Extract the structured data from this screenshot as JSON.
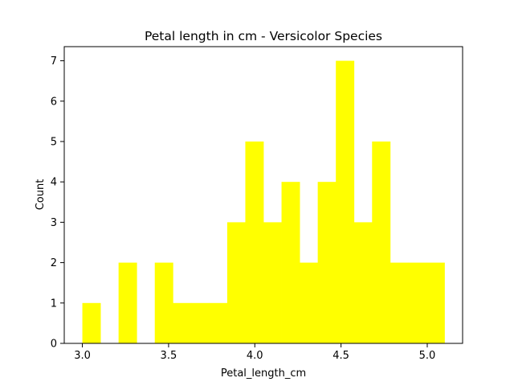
{
  "chart_data": {
    "type": "bar",
    "title": "Petal length in cm - Versicolor Species",
    "xlabel": "Petal_length_cm",
    "ylabel": "Count",
    "bin_edges": [
      3.0,
      3.105,
      3.21,
      3.315,
      3.42,
      3.525,
      3.63,
      3.735,
      3.84,
      3.945,
      4.05,
      4.155,
      4.26,
      4.365,
      4.47,
      4.575,
      4.68,
      4.785,
      4.89,
      4.995,
      5.1
    ],
    "values": [
      1,
      0,
      2,
      0,
      2,
      1,
      1,
      1,
      3,
      5,
      3,
      4,
      2,
      4,
      7,
      3,
      5,
      2,
      2,
      2
    ],
    "xlim": [
      2.895,
      5.205
    ],
    "ylim": [
      0,
      7.35
    ],
    "xticks": [
      3.0,
      3.5,
      4.0,
      4.5,
      5.0
    ],
    "xtick_labels": [
      "3.0",
      "3.5",
      "4.0",
      "4.5",
      "5.0"
    ],
    "yticks": [
      0,
      1,
      2,
      3,
      4,
      5,
      6,
      7
    ],
    "ytick_labels": [
      "0",
      "1",
      "2",
      "3",
      "4",
      "5",
      "6",
      "7"
    ],
    "bar_color": "#ffff00",
    "grid": false,
    "legend": "none"
  }
}
